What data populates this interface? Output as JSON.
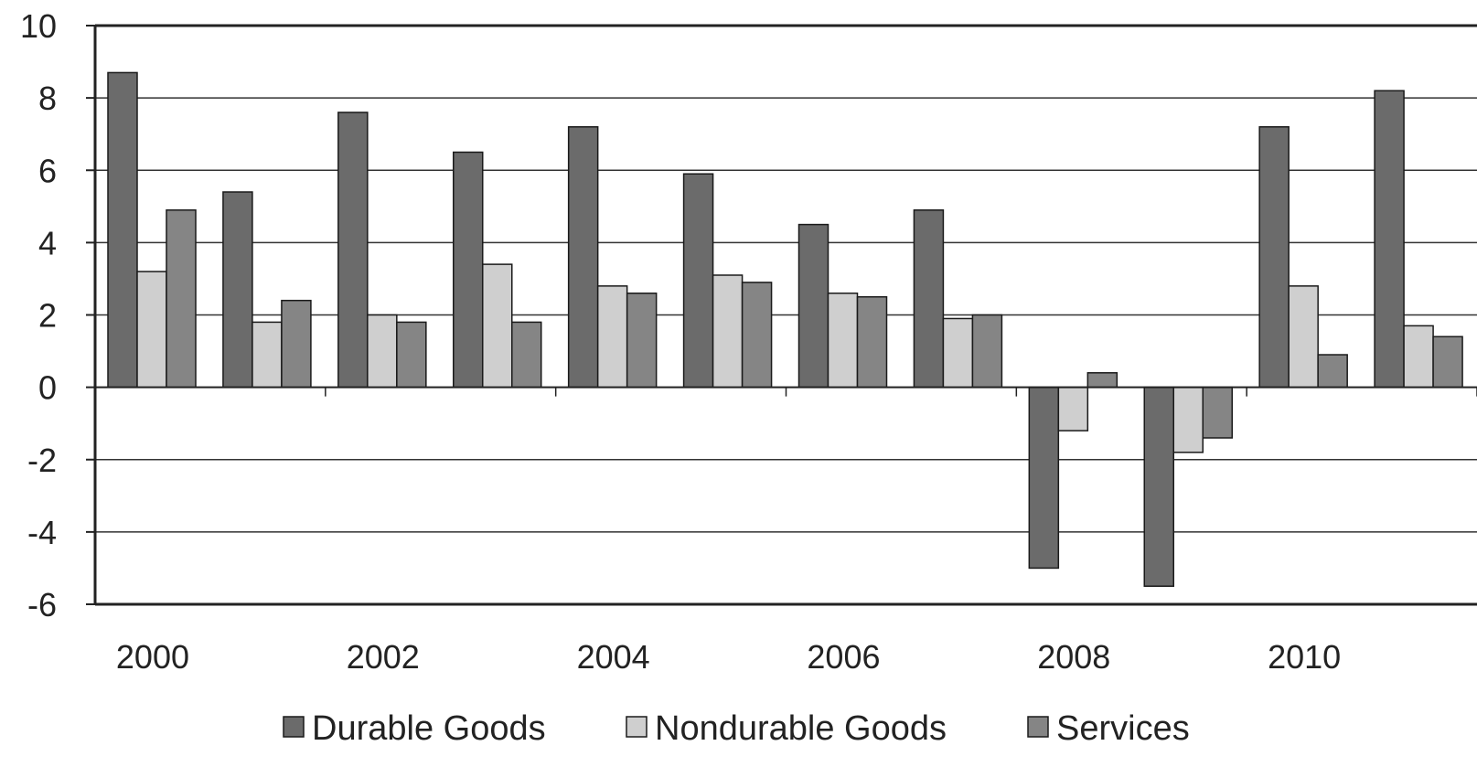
{
  "chart_data": {
    "type": "bar",
    "title": "",
    "xlabel": "",
    "ylabel": "",
    "categories": [
      "2000",
      "2001",
      "2002",
      "2003",
      "2004",
      "2005",
      "2006",
      "2007",
      "2008",
      "2009",
      "2010",
      "2011"
    ],
    "x_tick_labels": [
      "2000",
      "2002",
      "2004",
      "2006",
      "2008",
      "2010"
    ],
    "y_tick_labels": [
      "10",
      "8",
      "6",
      "4",
      "2",
      "0",
      "-2",
      "-4",
      "-6"
    ],
    "ylim": [
      -6,
      10
    ],
    "grid": true,
    "legend_position": "bottom",
    "series": [
      {
        "name": "Durable Goods",
        "color": "#6b6b6b",
        "values": [
          8.7,
          5.4,
          7.6,
          6.5,
          7.2,
          5.9,
          4.5,
          4.9,
          -5.0,
          -5.5,
          7.2,
          8.2
        ]
      },
      {
        "name": "Nondurable Goods",
        "color": "#cfcfcf",
        "values": [
          3.2,
          1.8,
          2.0,
          3.4,
          2.8,
          3.1,
          2.6,
          1.9,
          -1.2,
          -1.8,
          2.8,
          1.7
        ]
      },
      {
        "name": "Services",
        "color": "#858585",
        "values": [
          4.9,
          2.4,
          1.8,
          1.8,
          2.6,
          2.9,
          2.5,
          2.0,
          0.4,
          -1.4,
          0.9,
          1.4
        ]
      }
    ]
  }
}
